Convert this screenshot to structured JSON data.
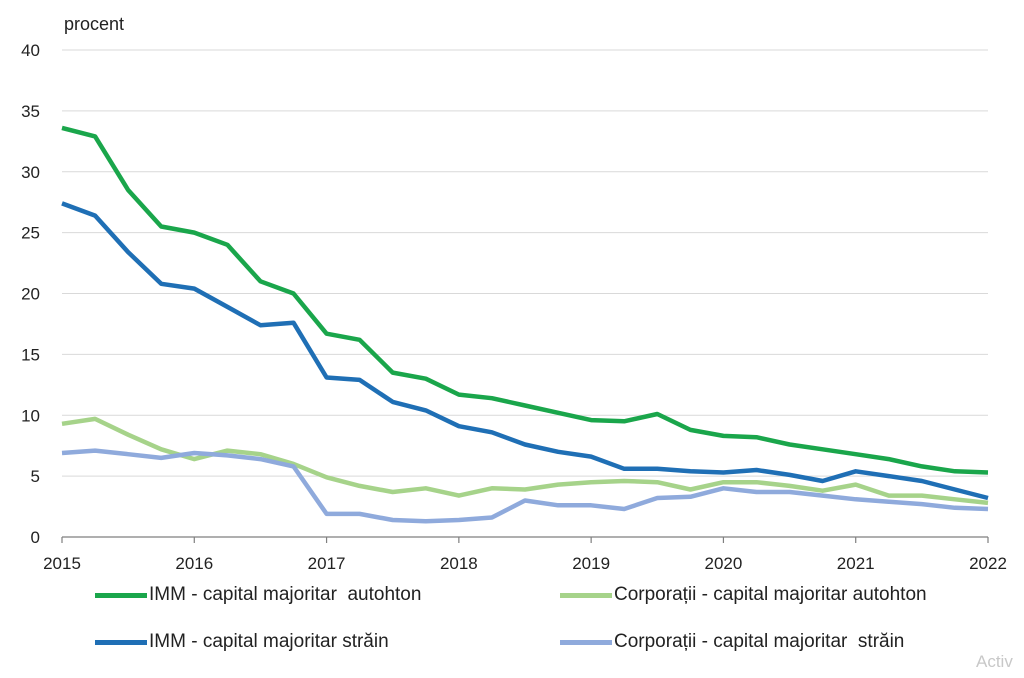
{
  "watermark": "Activ",
  "chart_data": {
    "type": "line",
    "ylabel": "procent",
    "ylim": [
      0,
      40
    ],
    "yticks": [
      "0",
      "5",
      "10",
      "15",
      "20",
      "25",
      "30",
      "35",
      "40"
    ],
    "xlim": [
      2015,
      2022
    ],
    "xticks": [
      "2015",
      "2016",
      "2017",
      "2018",
      "2019",
      "2020",
      "2021",
      "2022"
    ],
    "grid": true,
    "legend_position": "bottom",
    "x": [
      2015,
      2015.25,
      2015.5,
      2015.75,
      2016,
      2016.25,
      2016.5,
      2016.75,
      2017,
      2017.25,
      2017.5,
      2017.75,
      2018,
      2018.25,
      2018.5,
      2018.75,
      2019,
      2019.25,
      2019.5,
      2019.75,
      2020,
      2020.25,
      2020.5,
      2020.75,
      2021,
      2021.25,
      2021.5,
      2021.75,
      2022
    ],
    "series": [
      {
        "name": "IMM - capital majoritar  autohton",
        "color": "#1aa64b",
        "values": [
          33.6,
          32.9,
          28.5,
          25.5,
          25.0,
          24.0,
          21.0,
          20.0,
          16.7,
          16.2,
          13.5,
          13.0,
          11.7,
          11.4,
          10.8,
          10.2,
          9.6,
          9.5,
          10.1,
          8.8,
          8.3,
          8.2,
          7.6,
          7.2,
          6.8,
          6.4,
          5.8,
          5.4,
          5.3
        ]
      },
      {
        "name": "Corporații - capital majoritar autohton",
        "color": "#a6d38a",
        "values": [
          9.3,
          9.7,
          8.4,
          7.2,
          6.4,
          7.1,
          6.8,
          6.0,
          4.9,
          4.2,
          3.7,
          4.0,
          3.4,
          4.0,
          3.9,
          4.3,
          4.5,
          4.6,
          4.5,
          3.9,
          4.5,
          4.5,
          4.2,
          3.8,
          4.3,
          3.4,
          3.4,
          3.1,
          2.8
        ]
      },
      {
        "name": "IMM - capital majoritar străin",
        "color": "#1f6fb5",
        "values": [
          27.4,
          26.4,
          23.4,
          20.8,
          20.4,
          18.9,
          17.4,
          17.6,
          13.1,
          12.9,
          11.1,
          10.4,
          9.1,
          8.6,
          7.6,
          7.0,
          6.6,
          5.6,
          5.6,
          5.4,
          5.3,
          5.5,
          5.1,
          4.6,
          5.4,
          5.0,
          4.6,
          3.9,
          3.2
        ]
      },
      {
        "name": "Corporații - capital majoritar  străin",
        "color": "#8faadc",
        "values": [
          6.9,
          7.1,
          6.8,
          6.5,
          6.9,
          6.7,
          6.4,
          5.8,
          1.9,
          1.9,
          1.4,
          1.3,
          1.4,
          1.6,
          3.0,
          2.6,
          2.6,
          2.3,
          3.2,
          3.3,
          4.0,
          3.7,
          3.7,
          3.4,
          3.1,
          2.9,
          2.7,
          2.4,
          2.3
        ]
      }
    ]
  }
}
